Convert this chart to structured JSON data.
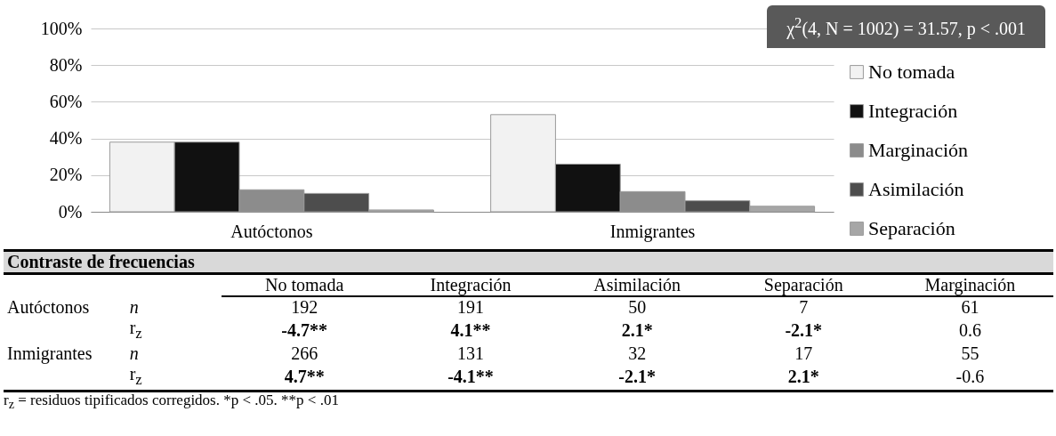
{
  "chart_data": {
    "type": "bar",
    "categories": [
      "Autóctonos",
      "Inmigrantes"
    ],
    "series": [
      {
        "name": "No tomada",
        "color": "#f2f2f2",
        "values": [
          38,
          53
        ]
      },
      {
        "name": "Integración",
        "color": "#111111",
        "values": [
          38,
          26
        ]
      },
      {
        "name": "Marginación",
        "color": "#8c8c8c",
        "values": [
          12,
          11
        ]
      },
      {
        "name": "Asimilación",
        "color": "#4d4d4d",
        "values": [
          10,
          6
        ]
      },
      {
        "name": "Separación",
        "color": "#a6a6a6",
        "values": [
          1,
          3
        ]
      }
    ],
    "ylim": [
      0,
      100
    ],
    "yticks": [
      {
        "value": 0,
        "label": "0%"
      },
      {
        "value": 20,
        "label": "20%"
      },
      {
        "value": 40,
        "label": "40%"
      },
      {
        "value": 60,
        "label": "60%"
      },
      {
        "value": 80,
        "label": "80%"
      },
      {
        "value": 100,
        "label": "100%"
      }
    ],
    "grid": "y",
    "legend": "right",
    "annotations": [
      "χ$^{2}$(4, N = 1002) = 31.57, p < .001",
      "Contraste de frecuencias",
      "No tomada",
      "Integración",
      "Asimilación",
      "Separación",
      "Marginación",
      "Autóctonos",
      "n",
      "192",
      "191",
      "50",
      "7",
      "61",
      "r$_{z}$",
      "-4.7**",
      "4.1**",
      "2.1*",
      "-2.1*",
      "0.6",
      "Inmigrantes",
      "n",
      "266",
      "131",
      "32",
      "17",
      "55",
      "r$_{z}$",
      "4.7**",
      "-4.1**",
      "-2.1*",
      "2.1*",
      "-0.6",
      "r$_{z}$ = residuos tipificados corregidos. *p < .05. **p < .01"
    ]
  }
}
